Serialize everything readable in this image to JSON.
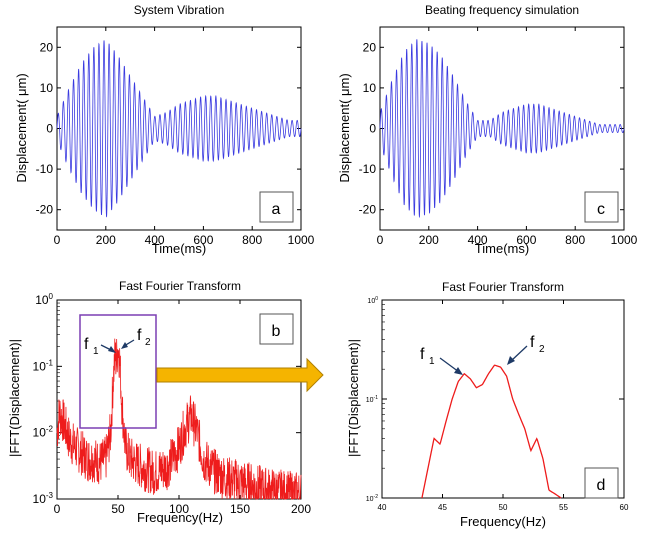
{
  "colors": {
    "signal_blue": "#3a3ae0",
    "signal_red": "#ee1c1c",
    "zoom_box": "#7b3fb3",
    "arrow_fill": "#f5b400",
    "arrow_stroke": "#b08000"
  },
  "chart_data": [
    {
      "panel_label": "a",
      "type": "line",
      "title": "System Vibration",
      "xlabel": "Time(ms)",
      "ylabel": "Displacement( μm)",
      "xlim": [
        0,
        1000
      ],
      "ylim": [
        -25,
        25
      ],
      "x_ticks": [
        "0",
        "200",
        "400",
        "600",
        "800",
        "1000"
      ],
      "y_ticks": [
        "-20",
        "-10",
        "0",
        "10",
        "20"
      ],
      "grid": false,
      "series": [
        {
          "envelope_time_ms": [
            0,
            50,
            100,
            150,
            200,
            250,
            300,
            350,
            400,
            450,
            500,
            550,
            600,
            650,
            700,
            750,
            800,
            850,
            900,
            950,
            1000
          ],
          "envelope_amplitude_um": [
            3,
            10,
            16,
            20,
            22,
            18,
            13,
            8,
            3,
            4,
            6,
            7,
            8,
            8,
            7,
            6,
            5,
            4,
            3,
            2,
            2
          ]
        }
      ]
    },
    {
      "panel_label": "c",
      "type": "line",
      "title": "Beating frequency simulation",
      "xlabel": "Time(ms)",
      "ylabel": "Displacement( μm)",
      "xlim": [
        0,
        1000
      ],
      "ylim": [
        -25,
        25
      ],
      "x_ticks": [
        "0",
        "200",
        "400",
        "600",
        "800",
        "1000"
      ],
      "y_ticks": [
        "-20",
        "-10",
        "0",
        "10",
        "20"
      ],
      "grid": false,
      "series": [
        {
          "envelope_time_ms": [
            0,
            50,
            100,
            150,
            200,
            250,
            300,
            350,
            400,
            450,
            500,
            550,
            600,
            650,
            700,
            750,
            800,
            850,
            900,
            950,
            1000
          ],
          "envelope_amplitude_um": [
            4,
            12,
            19,
            22,
            21,
            18,
            13,
            7,
            2,
            2,
            4,
            5,
            6,
            6,
            5,
            4,
            3,
            2,
            1,
            1,
            1
          ]
        }
      ]
    },
    {
      "panel_label": "b",
      "type": "line",
      "title": "Fast Fourier Transform",
      "xlabel": "Frequency(Hz)",
      "ylabel": "|FFT(Displacement)|",
      "xlim": [
        0,
        200
      ],
      "ylim": [
        0.001,
        1
      ],
      "yscale": "log",
      "x_ticks": [
        "0",
        "50",
        "100",
        "150",
        "200"
      ],
      "y_ticks": [
        "10^0",
        "10^-1",
        "10^-2",
        "10^-3"
      ],
      "grid": false,
      "annotations": [
        "f",
        "1",
        "f",
        "2"
      ],
      "series": [
        {
          "frequency_hz": [
            0,
            2,
            5,
            10,
            15,
            20,
            25,
            30,
            35,
            40,
            44,
            46,
            47.5,
            48.5,
            50,
            51.5,
            53,
            56,
            60,
            70,
            80,
            90,
            100,
            105,
            110,
            115,
            120,
            130,
            140,
            150,
            160,
            170,
            180,
            190,
            200
          ],
          "magnitude": [
            0.01,
            0.02,
            0.015,
            0.008,
            0.006,
            0.005,
            0.004,
            0.004,
            0.0035,
            0.004,
            0.01,
            0.06,
            0.15,
            0.12,
            0.2,
            0.12,
            0.03,
            0.006,
            0.004,
            0.003,
            0.0025,
            0.003,
            0.006,
            0.012,
            0.018,
            0.01,
            0.004,
            0.0025,
            0.002,
            0.0018,
            0.0016,
            0.0014,
            0.0013,
            0.0012,
            0.0012
          ]
        }
      ]
    },
    {
      "panel_label": "d",
      "type": "line",
      "title": "Fast Fourier Transform",
      "xlabel": "Frequency(Hz)",
      "ylabel": "|FFT(Displacement)|",
      "xlim": [
        40,
        60
      ],
      "ylim": [
        0.01,
        1
      ],
      "yscale": "log",
      "x_ticks": [
        "40",
        "45",
        "50",
        "55",
        "60"
      ],
      "y_ticks": [
        "10^0",
        "10^-1",
        "10^-2"
      ],
      "grid": false,
      "annotations": [
        "f",
        "1",
        "f",
        "2"
      ],
      "series": [
        {
          "frequency_hz": [
            43.3,
            43.8,
            44.3,
            44.8,
            45.3,
            45.8,
            46.3,
            46.8,
            47.3,
            47.8,
            48.3,
            48.8,
            49.3,
            49.8,
            50.3,
            50.8,
            51.3,
            51.8,
            52.3,
            52.8,
            53.3,
            53.8,
            54.3,
            54.8
          ],
          "magnitude": [
            0.01,
            0.02,
            0.04,
            0.035,
            0.06,
            0.1,
            0.15,
            0.18,
            0.16,
            0.13,
            0.14,
            0.18,
            0.22,
            0.21,
            0.17,
            0.1,
            0.07,
            0.05,
            0.03,
            0.04,
            0.025,
            0.012,
            0.011,
            0.01
          ]
        }
      ]
    }
  ]
}
